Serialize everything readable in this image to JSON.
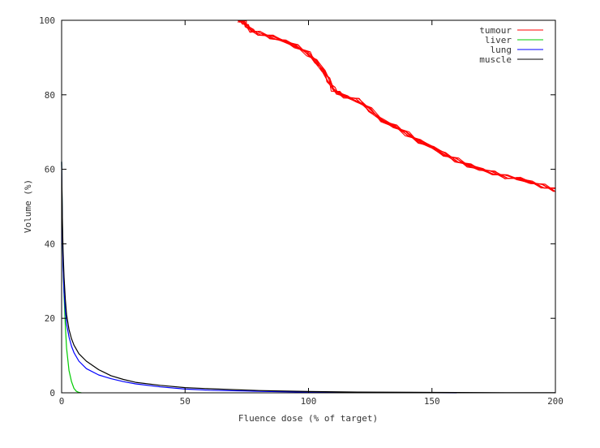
{
  "chart_data": {
    "type": "line",
    "title": "",
    "xlabel": "Fluence dose (% of target)",
    "ylabel": "Volume (%)",
    "xlim": [
      0,
      200
    ],
    "ylim": [
      0,
      100
    ],
    "xticks": [
      "0",
      "50",
      "100",
      "150",
      "200"
    ],
    "yticks": [
      "0",
      "20",
      "40",
      "60",
      "80",
      "100"
    ],
    "grid": false,
    "legend_position": "top-right",
    "series": [
      {
        "name": "tumour",
        "color": "#ff0000",
        "band_copies": 12,
        "x": [
          72,
          74,
          75,
          77,
          80,
          85,
          90,
          95,
          100,
          103,
          106,
          108,
          110,
          112,
          115,
          120,
          125,
          130,
          135,
          140,
          145,
          150,
          155,
          160,
          165,
          170,
          175,
          180,
          185,
          190,
          195,
          200
        ],
        "y": [
          100,
          99.5,
          98.5,
          97.2,
          96.5,
          95.5,
          94.5,
          93,
          91,
          89,
          86.5,
          84,
          81.5,
          80.5,
          79.5,
          78.5,
          76,
          73,
          71.5,
          69.5,
          67.5,
          66,
          64,
          62.5,
          61,
          60,
          59,
          58,
          57.5,
          56.5,
          55.5,
          54.5
        ]
      },
      {
        "name": "liver",
        "color": "#00cc00",
        "x": [
          0,
          0.3,
          0.6,
          1,
          1.5,
          2,
          3,
          4,
          5,
          6,
          7,
          8
        ],
        "y": [
          62,
          45,
          34,
          26,
          18,
          12,
          6,
          3,
          1.2,
          0.4,
          0.1,
          0
        ]
      },
      {
        "name": "lung",
        "color": "#0000ff",
        "x": [
          0,
          0.3,
          0.6,
          1,
          1.5,
          2,
          3,
          4,
          5,
          7,
          10,
          15,
          20,
          25,
          30,
          40,
          50,
          60,
          80,
          100,
          120,
          140,
          160
        ],
        "y": [
          62,
          44,
          34,
          27,
          22,
          18.5,
          15,
          12.5,
          10.8,
          8.5,
          6.5,
          4.8,
          3.8,
          3,
          2.4,
          1.6,
          1,
          0.7,
          0.4,
          0.2,
          0.1,
          0.05,
          0
        ]
      },
      {
        "name": "muscle",
        "color": "#000000",
        "x": [
          0,
          0.3,
          0.6,
          1,
          1.5,
          2,
          3,
          4,
          5,
          7,
          10,
          15,
          20,
          25,
          30,
          40,
          50,
          60,
          80,
          100,
          120,
          150,
          180,
          200
        ],
        "y": [
          62,
          47,
          38,
          31,
          25,
          21,
          17,
          14.5,
          12.8,
          10.5,
          8.5,
          6.2,
          4.6,
          3.6,
          2.8,
          2,
          1.4,
          1.1,
          0.6,
          0.35,
          0.2,
          0.1,
          0.05,
          0.02
        ]
      }
    ]
  }
}
